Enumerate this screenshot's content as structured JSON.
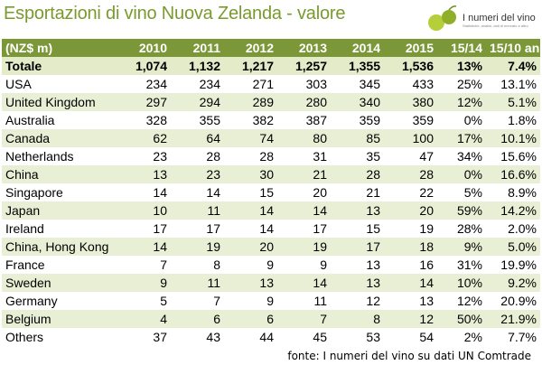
{
  "title": "Esportazioni di vino Nuova Zelanda - valore",
  "logo": {
    "name": "I numeri del vino",
    "subtitle": "Statistiche, analisi, dati di mercato e altro"
  },
  "table": {
    "headers": [
      "(NZ$ m)",
      "2010",
      "2011",
      "2012",
      "2013",
      "2014",
      "2015",
      "15/14",
      "15/10 an"
    ],
    "total": [
      "Totale",
      "1,074",
      "1,132",
      "1,217",
      "1,257",
      "1,355",
      "1,536",
      "13%",
      "7.4%"
    ],
    "rows": [
      [
        "USA",
        "234",
        "234",
        "271",
        "303",
        "345",
        "433",
        "25%",
        "13.1%"
      ],
      [
        "United Kingdom",
        "297",
        "294",
        "289",
        "280",
        "340",
        "380",
        "12%",
        "5.1%"
      ],
      [
        "Australia",
        "328",
        "355",
        "382",
        "387",
        "359",
        "359",
        "0%",
        "1.8%"
      ],
      [
        "Canada",
        "62",
        "64",
        "74",
        "80",
        "85",
        "100",
        "17%",
        "10.1%"
      ],
      [
        "Netherlands",
        "23",
        "28",
        "28",
        "31",
        "35",
        "47",
        "34%",
        "15.6%"
      ],
      [
        "China",
        "13",
        "23",
        "30",
        "21",
        "28",
        "28",
        "0%",
        "16.6%"
      ],
      [
        "Singapore",
        "14",
        "14",
        "15",
        "20",
        "21",
        "22",
        "5%",
        "8.9%"
      ],
      [
        "Japan",
        "10",
        "11",
        "14",
        "14",
        "13",
        "20",
        "59%",
        "14.2%"
      ],
      [
        "Ireland",
        "17",
        "17",
        "14",
        "17",
        "15",
        "19",
        "28%",
        "2.0%"
      ],
      [
        "China, Hong Kong",
        "14",
        "19",
        "20",
        "19",
        "17",
        "18",
        "9%",
        "5.0%"
      ],
      [
        "France",
        "7",
        "8",
        "9",
        "9",
        "13",
        "16",
        "31%",
        "19.9%"
      ],
      [
        "Sweden",
        "9",
        "11",
        "13",
        "14",
        "13",
        "14",
        "10%",
        "9.2%"
      ],
      [
        "Germany",
        "5",
        "7",
        "9",
        "11",
        "12",
        "13",
        "12%",
        "20.9%"
      ],
      [
        "Belgium",
        "4",
        "6",
        "6",
        "7",
        "8",
        "12",
        "50%",
        "21.9%"
      ],
      [
        "Others",
        "37",
        "43",
        "44",
        "45",
        "53",
        "54",
        "2%",
        "7.7%"
      ]
    ]
  },
  "source": "fonte: I numeri del vino su dati UN Comtrade",
  "colors": {
    "header_bg": "#7c9738",
    "title": "#7a9a2e",
    "band": "#e9efd5"
  }
}
